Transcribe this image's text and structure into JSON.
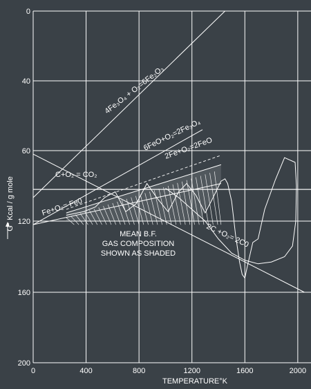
{
  "chart_data": {
    "type": "line",
    "title": "",
    "xlabel": "TEMPERATURE°K",
    "ylabel": "G° Kcal / g mole",
    "xlim": [
      0,
      2100
    ],
    "ylim": [
      0,
      200
    ],
    "y_inverted": true,
    "x_ticks": [
      0,
      400,
      800,
      1200,
      1600,
      2000
    ],
    "y_ticks": [
      0,
      40,
      60,
      120,
      160,
      200
    ],
    "y_tick_labels": [
      "0",
      "40",
      "60",
      "120",
      "160",
      "200"
    ],
    "grid": true,
    "colors": {
      "background": "#3a4147",
      "lines": "#ffffff"
    },
    "reactions": [
      {
        "label": "4Fe₃O₄ + O₂=6Fe₂O₃",
        "x": [
          0,
          1450
        ],
        "y": [
          100,
          0
        ]
      },
      {
        "label": "6FeO+O₂=2Fe₃O₄",
        "x": [
          0,
          1280
        ],
        "y": [
          122,
          54
        ]
      },
      {
        "label": "2Fe+O₂=2FeO",
        "x": [
          250,
          1420
        ],
        "y": [
          113,
          72
        ]
      },
      {
        "label": "C+O₂ = CO₂",
        "x": [
          0,
          2100
        ],
        "y": [
          93,
          93
        ]
      },
      {
        "label": "Fe+O₂= Fe0",
        "x": [
          0,
          1420
        ],
        "y": [
          122,
          88
        ]
      },
      {
        "label": "2C +O₂= 2C0",
        "x": [
          0,
          2050
        ],
        "y": [
          63,
          160
        ]
      }
    ],
    "oscillating_curve": {
      "x": [
        250,
        380,
        470,
        540,
        620,
        700,
        780,
        860,
        940,
        1020,
        1100,
        1160,
        1230,
        1300,
        1360,
        1420,
        1450,
        1470,
        1500,
        1530,
        1560,
        1580,
        1600,
        1620,
        1660,
        1700,
        1750,
        1830,
        1900,
        1980,
        1990,
        1985,
        1960,
        1900,
        1800,
        1700,
        1600,
        1500,
        1400,
        1300,
        1200,
        1100,
        1000
      ],
      "y": [
        115,
        112,
        108,
        100,
        95,
        112,
        105,
        88,
        101,
        112,
        95,
        88,
        98,
        113,
        100,
        86,
        84,
        88,
        103,
        128,
        143,
        150,
        152,
        145,
        132,
        130,
        110,
        85,
        66,
        70,
        90,
        120,
        134,
        140,
        143,
        144,
        142,
        138,
        130,
        120,
        110,
        100,
        92
      ]
    },
    "shaded_region_note": "MEAN B.F.\nGAS COMPOSITION\nSHOWN AS SHADED",
    "annotations": [
      "4Fe₃O₄ + O₂=6Fe₂O₃",
      "6FeO+O₂=2Fe₃O₄",
      "2Fe+O₂=2FeO",
      "C+O₂ = CO₂",
      "Fe+O₂= Fe0",
      "MEAN B.F.",
      "GAS COMPOSITION",
      "SHOWN AS SHADED",
      "2C +O₂= 2C0"
    ]
  }
}
